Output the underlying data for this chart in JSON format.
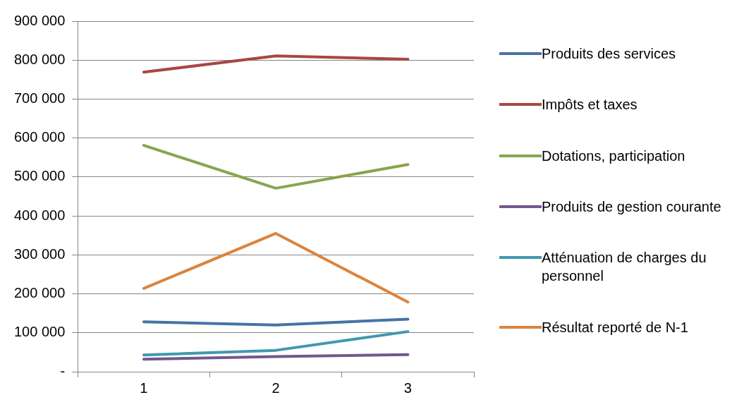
{
  "chart_data": {
    "type": "line",
    "categories": [
      "1",
      "2",
      "3"
    ],
    "series": [
      {
        "name": "Produits des services",
        "color": "#4573a7",
        "values": [
          128000,
          120000,
          135000
        ]
      },
      {
        "name": "Impôts et taxes",
        "color": "#aa4643",
        "values": [
          769000,
          811000,
          802000
        ]
      },
      {
        "name": "Dotations, participation",
        "color": "#89a54e",
        "values": [
          581000,
          471000,
          532000
        ]
      },
      {
        "name": "Produits de gestion courante",
        "color": "#71588f",
        "values": [
          32000,
          39000,
          44000
        ]
      },
      {
        "name": "Atténuation de charges du personnel",
        "color": "#4198af",
        "values": [
          43000,
          55000,
          103000
        ]
      },
      {
        "name": "Résultat reporté de N-1",
        "color": "#db843d",
        "values": [
          214000,
          355000,
          179000
        ]
      }
    ],
    "ylim": [
      0,
      900000
    ],
    "yticks": [
      {
        "value": 0,
        "label": "-"
      },
      {
        "value": 100000,
        "label": "100 000"
      },
      {
        "value": 200000,
        "label": "200 000"
      },
      {
        "value": 300000,
        "label": "300 000"
      },
      {
        "value": 400000,
        "label": "400 000"
      },
      {
        "value": 500000,
        "label": "500 000"
      },
      {
        "value": 600000,
        "label": "600 000"
      },
      {
        "value": 700000,
        "label": "700 000"
      },
      {
        "value": 800000,
        "label": "800 000"
      },
      {
        "value": 900000,
        "label": "900 000"
      }
    ],
    "grid": "y",
    "legend": "right",
    "marker": "none",
    "line_style": "solid"
  }
}
